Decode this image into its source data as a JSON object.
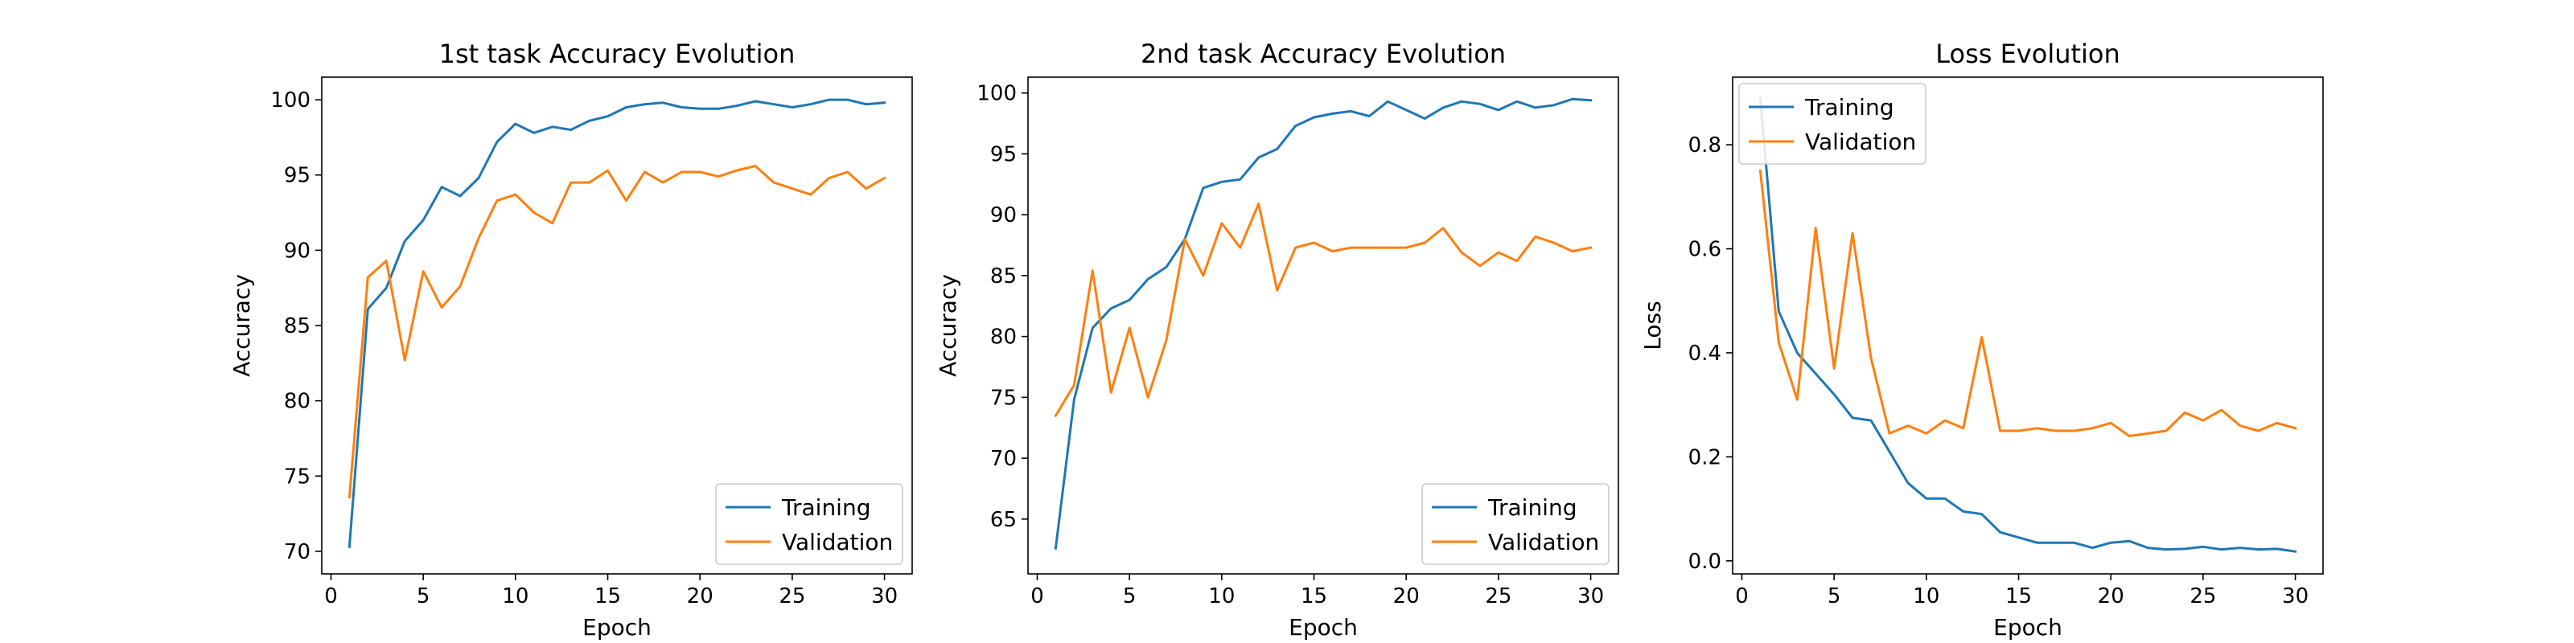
{
  "chart_data": [
    {
      "type": "line",
      "title": "1st task Accuracy Evolution",
      "xlabel": "Epoch",
      "ylabel": "Accuracy",
      "xlim": [
        -0.5,
        31.5
      ],
      "ylim": [
        68.5,
        101.5
      ],
      "xticks": [
        0,
        5,
        10,
        15,
        20,
        25,
        30
      ],
      "yticks": [
        70,
        75,
        80,
        85,
        90,
        95,
        100
      ],
      "legend_position": "lower right",
      "grid": false,
      "series": [
        {
          "name": "Training",
          "color": "#1f77b4",
          "x": [
            1,
            2,
            3,
            4,
            5,
            6,
            7,
            8,
            9,
            10,
            11,
            12,
            13,
            14,
            15,
            16,
            17,
            18,
            19,
            20,
            21,
            22,
            23,
            24,
            25,
            26,
            27,
            28,
            29,
            30
          ],
          "y": [
            70.3,
            86.1,
            87.5,
            90.6,
            92.0,
            94.2,
            93.6,
            94.8,
            97.2,
            98.4,
            97.8,
            98.2,
            98.0,
            98.6,
            98.9,
            99.5,
            99.7,
            99.8,
            99.5,
            99.4,
            99.4,
            99.6,
            99.9,
            99.7,
            99.5,
            99.7,
            100.0,
            100.0,
            99.7,
            99.8
          ]
        },
        {
          "name": "Validation",
          "color": "#ff7f0e",
          "x": [
            1,
            2,
            3,
            4,
            5,
            6,
            7,
            8,
            9,
            10,
            11,
            12,
            13,
            14,
            15,
            16,
            17,
            18,
            19,
            20,
            21,
            22,
            23,
            24,
            25,
            26,
            27,
            28,
            29,
            30
          ],
          "y": [
            73.6,
            88.2,
            89.3,
            82.7,
            88.6,
            86.2,
            87.6,
            90.8,
            93.3,
            93.7,
            92.5,
            91.8,
            94.5,
            94.5,
            95.3,
            93.3,
            95.2,
            94.5,
            95.2,
            95.2,
            94.9,
            95.3,
            95.6,
            94.5,
            94.1,
            93.7,
            94.8,
            95.2,
            94.1,
            94.8
          ]
        }
      ]
    },
    {
      "type": "line",
      "title": "2nd task Accuracy Evolution",
      "xlabel": "Epoch",
      "ylabel": "Accuracy",
      "xlim": [
        -0.5,
        31.5
      ],
      "ylim": [
        60.5,
        101.3
      ],
      "xticks": [
        0,
        5,
        10,
        15,
        20,
        25,
        30
      ],
      "yticks": [
        65,
        70,
        75,
        80,
        85,
        90,
        95,
        100
      ],
      "legend_position": "lower right",
      "grid": false,
      "series": [
        {
          "name": "Training",
          "color": "#1f77b4",
          "x": [
            1,
            2,
            3,
            4,
            5,
            6,
            7,
            8,
            9,
            10,
            11,
            12,
            13,
            14,
            15,
            16,
            17,
            18,
            19,
            20,
            21,
            22,
            23,
            24,
            25,
            26,
            27,
            28,
            29,
            30
          ],
          "y": [
            62.6,
            74.8,
            80.7,
            82.3,
            83.0,
            84.7,
            85.7,
            88.0,
            92.2,
            92.7,
            92.9,
            94.7,
            95.4,
            97.3,
            98.0,
            98.3,
            98.5,
            98.1,
            99.3,
            98.6,
            97.9,
            98.8,
            99.3,
            99.1,
            98.6,
            99.3,
            98.8,
            99.0,
            99.5,
            99.4
          ]
        },
        {
          "name": "Validation",
          "color": "#ff7f0e",
          "x": [
            1,
            2,
            3,
            4,
            5,
            6,
            7,
            8,
            9,
            10,
            11,
            12,
            13,
            14,
            15,
            16,
            17,
            18,
            19,
            20,
            21,
            22,
            23,
            24,
            25,
            26,
            27,
            28,
            29,
            30
          ],
          "y": [
            73.5,
            76.0,
            85.4,
            75.4,
            80.7,
            75.0,
            79.7,
            88.0,
            85.0,
            89.3,
            87.3,
            90.9,
            83.8,
            87.3,
            87.7,
            87.0,
            87.3,
            87.3,
            87.3,
            87.3,
            87.7,
            88.9,
            86.9,
            85.8,
            86.9,
            86.2,
            88.2,
            87.7,
            87.0,
            87.3
          ]
        }
      ]
    },
    {
      "type": "line",
      "title": "Loss Evolution",
      "xlabel": "Epoch",
      "ylabel": "Loss",
      "xlim": [
        -0.5,
        31.5
      ],
      "ylim": [
        -0.025,
        0.93
      ],
      "xticks": [
        0,
        5,
        10,
        15,
        20,
        25,
        30
      ],
      "yticks": [
        0.0,
        0.2,
        0.4,
        0.6,
        0.8
      ],
      "legend_position": "upper left",
      "grid": false,
      "series": [
        {
          "name": "Training",
          "color": "#1f77b4",
          "x": [
            1,
            2,
            3,
            4,
            5,
            6,
            7,
            8,
            9,
            10,
            11,
            12,
            13,
            14,
            15,
            16,
            17,
            18,
            19,
            20,
            21,
            22,
            23,
            24,
            25,
            26,
            27,
            28,
            29,
            30
          ],
          "y": [
            0.89,
            0.48,
            0.4,
            0.36,
            0.32,
            0.275,
            0.27,
            0.21,
            0.15,
            0.12,
            0.12,
            0.095,
            0.09,
            0.055,
            0.045,
            0.035,
            0.035,
            0.035,
            0.025,
            0.035,
            0.038,
            0.025,
            0.022,
            0.023,
            0.027,
            0.022,
            0.025,
            0.022,
            0.023,
            0.018
          ]
        },
        {
          "name": "Validation",
          "color": "#ff7f0e",
          "x": [
            1,
            2,
            3,
            4,
            5,
            6,
            7,
            8,
            9,
            10,
            11,
            12,
            13,
            14,
            15,
            16,
            17,
            18,
            19,
            20,
            21,
            22,
            23,
            24,
            25,
            26,
            27,
            28,
            29,
            30
          ],
          "y": [
            0.75,
            0.42,
            0.31,
            0.64,
            0.37,
            0.63,
            0.39,
            0.245,
            0.26,
            0.245,
            0.27,
            0.255,
            0.43,
            0.25,
            0.25,
            0.255,
            0.25,
            0.25,
            0.255,
            0.265,
            0.24,
            0.245,
            0.25,
            0.285,
            0.27,
            0.29,
            0.26,
            0.25,
            0.265,
            0.255
          ]
        }
      ]
    }
  ]
}
